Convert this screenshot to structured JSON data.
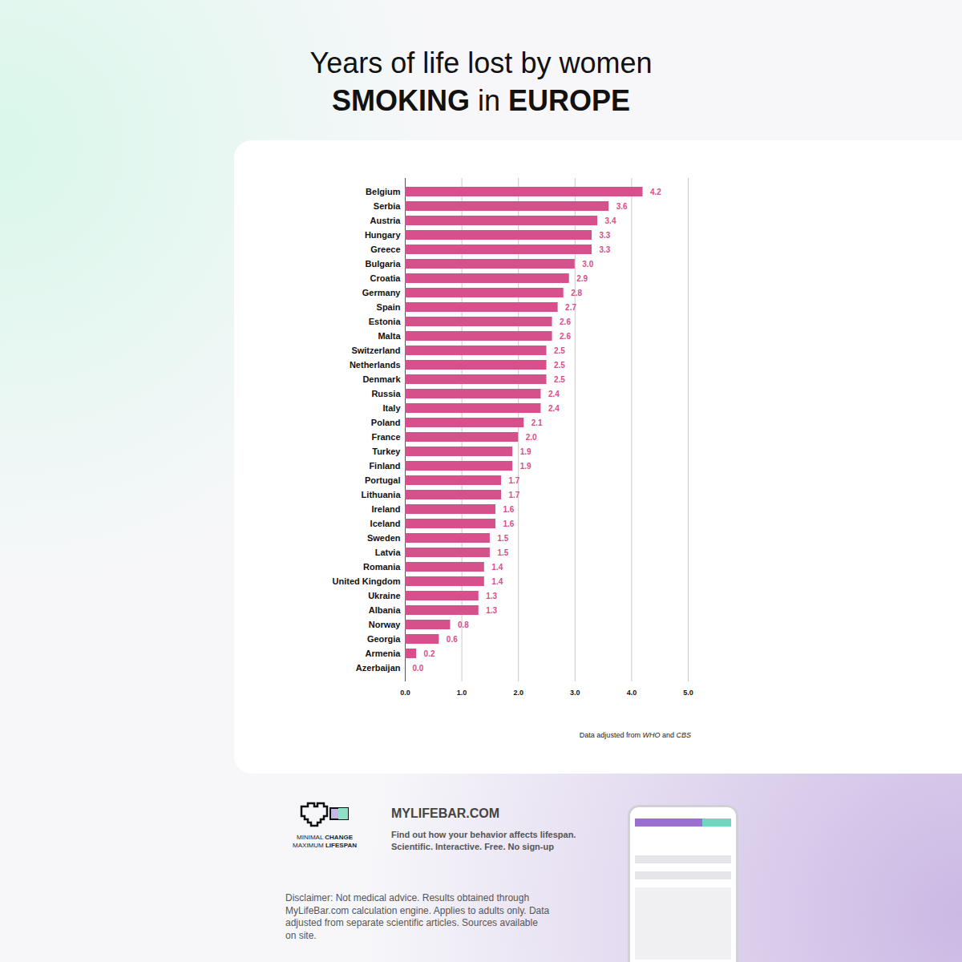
{
  "chart_data": {
    "type": "bar",
    "orientation": "horizontal",
    "title": "Years of life lost by women SMOKING in EUROPE",
    "source": "Data adjusted from WHO and CBS",
    "categories": [
      "Belgium",
      "Serbia",
      "Austria",
      "Hungary",
      "Greece",
      "Bulgaria",
      "Croatia",
      "Germany",
      "Spain",
      "Estonia",
      "Malta",
      "Switzerland",
      "Netherlands",
      "Denmark",
      "Russia",
      "Italy",
      "Poland",
      "France",
      "Turkey",
      "Finland",
      "Portugal",
      "Lithuania",
      "Ireland",
      "Iceland",
      "Sweden",
      "Latvia",
      "Romania",
      "United Kingdom",
      "Ukraine",
      "Albania",
      "Norway",
      "Georgia",
      "Armenia",
      "Azerbaijan"
    ],
    "values": [
      4.2,
      3.6,
      3.4,
      3.3,
      3.3,
      3.0,
      2.9,
      2.8,
      2.7,
      2.6,
      2.6,
      2.5,
      2.5,
      2.5,
      2.4,
      2.4,
      2.1,
      2.0,
      1.9,
      1.9,
      1.7,
      1.7,
      1.6,
      1.6,
      1.5,
      1.5,
      1.4,
      1.4,
      1.3,
      1.3,
      0.8,
      0.6,
      0.2,
      0.0
    ],
    "value_labels": [
      "4.2",
      "3.6",
      "3.4",
      "3.3",
      "3.3",
      "3.0",
      "2.9",
      "2.8",
      "2.7",
      "2.6",
      "2.6",
      "2.5",
      "2.5",
      "2.5",
      "2.4",
      "2.4",
      "2.1",
      "2.0",
      "1.9",
      "1.9",
      "1.7",
      "1.7",
      "1.6",
      "1.6",
      "1.5",
      "1.5",
      "1.4",
      "1.4",
      "1.3",
      "1.3",
      "0.8",
      "0.6",
      "0.2",
      "0.0"
    ],
    "color": "#d6508c",
    "data_labels": true,
    "xlim": [
      0,
      5
    ],
    "xticks": [
      {
        "value": 0,
        "label": "0.0"
      },
      {
        "value": 1,
        "label": "1.0"
      },
      {
        "value": 2,
        "label": "2.0"
      },
      {
        "value": 3,
        "label": "3.0"
      },
      {
        "value": 4,
        "label": "4.0"
      },
      {
        "value": 5,
        "label": "5.0"
      }
    ],
    "grid": true
  },
  "footer": {
    "tagline": [
      "MINIMAL CHANGE",
      "MAXIMUM LIFESPAN"
    ],
    "site": "MYLIFEBAR.COM",
    "description": "Find out how your behavior affects lifespan. Scientific. Interactive. Free. No sign-up",
    "disclaimer": "Disclaimer: Not medical advice. Results obtained through MyLifeBar.com calculation engine. Applies to adults only. Data adjusted from separate scientific articles. Sources available on site."
  }
}
